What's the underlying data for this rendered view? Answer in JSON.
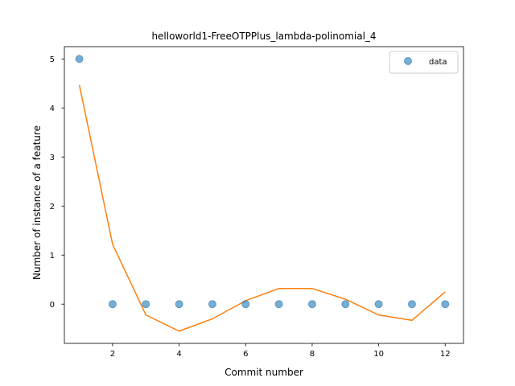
{
  "chart_data": {
    "type": "scatter",
    "title": "helloworld1-FreeOTPPlus_lambda-polinomial_4",
    "xlabel": "Commit number",
    "ylabel": "Number of instance of a feature",
    "xlim": [
      0.55,
      12.55
    ],
    "ylim": [
      -0.8,
      5.25
    ],
    "xticks": [
      2,
      4,
      6,
      8,
      10,
      12
    ],
    "yticks": [
      0,
      1,
      2,
      3,
      4,
      5
    ],
    "grid": false,
    "legend_position": "top-right",
    "series": [
      {
        "name": "data",
        "kind": "scatter",
        "color": "#1f77b4",
        "x": [
          1,
          2,
          3,
          4,
          5,
          6,
          7,
          8,
          9,
          10,
          11,
          12
        ],
        "y": [
          5,
          0,
          0,
          0,
          0,
          0,
          0,
          0,
          0,
          0,
          0,
          0
        ]
      },
      {
        "kind": "line",
        "color": "#ff7f0e",
        "x": [
          1,
          2,
          3,
          4,
          5,
          6,
          7,
          8,
          9,
          10,
          11,
          12
        ],
        "y": [
          4.47,
          1.22,
          -0.22,
          -0.55,
          -0.3,
          0.07,
          0.32,
          0.32,
          0.1,
          -0.22,
          -0.33,
          0.25
        ]
      }
    ]
  }
}
